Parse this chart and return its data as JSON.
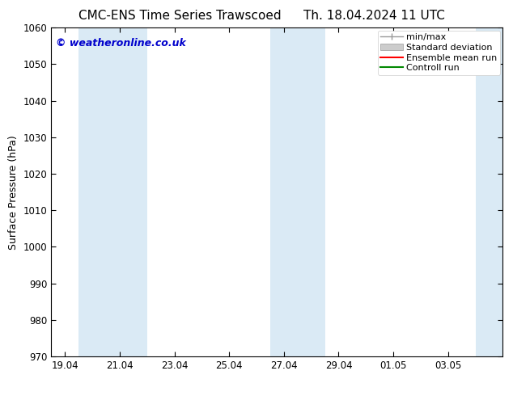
{
  "title_left": "CMC-ENS Time Series Trawscoed",
  "title_right": "Th. 18.04.2024 11 UTC",
  "ylabel": "Surface Pressure (hPa)",
  "ylim": [
    970,
    1060
  ],
  "yticks": [
    970,
    980,
    990,
    1000,
    1010,
    1020,
    1030,
    1040,
    1050,
    1060
  ],
  "xtick_labels": [
    "19.04",
    "21.04",
    "23.04",
    "25.04",
    "27.04",
    "29.04",
    "01.05",
    "03.05"
  ],
  "xtick_positions": [
    0,
    2,
    4,
    6,
    8,
    10,
    12,
    14
  ],
  "xlim_start": -0.5,
  "xlim_end": 16.0,
  "shaded_bands": [
    {
      "x_start": 0.5,
      "x_end": 2.5
    },
    {
      "x_start": 1.5,
      "x_end": 3.0
    },
    {
      "x_start": 7.5,
      "x_end": 9.5
    },
    {
      "x_start": 15.0,
      "x_end": 16.0
    }
  ],
  "band_color": "#daeaf5",
  "watermark_text": "© weatheronline.co.uk",
  "watermark_color": "#0000cc",
  "legend_labels": [
    "min/max",
    "Standard deviation",
    "Ensemble mean run",
    "Controll run"
  ],
  "legend_colors": [
    "#999999",
    "#cccccc",
    "#ff0000",
    "#008800"
  ],
  "background_color": "#ffffff",
  "plot_bg_color": "#ffffff",
  "title_fontsize": 11,
  "tick_fontsize": 8.5,
  "label_fontsize": 9,
  "watermark_fontsize": 9,
  "legend_fontsize": 8
}
